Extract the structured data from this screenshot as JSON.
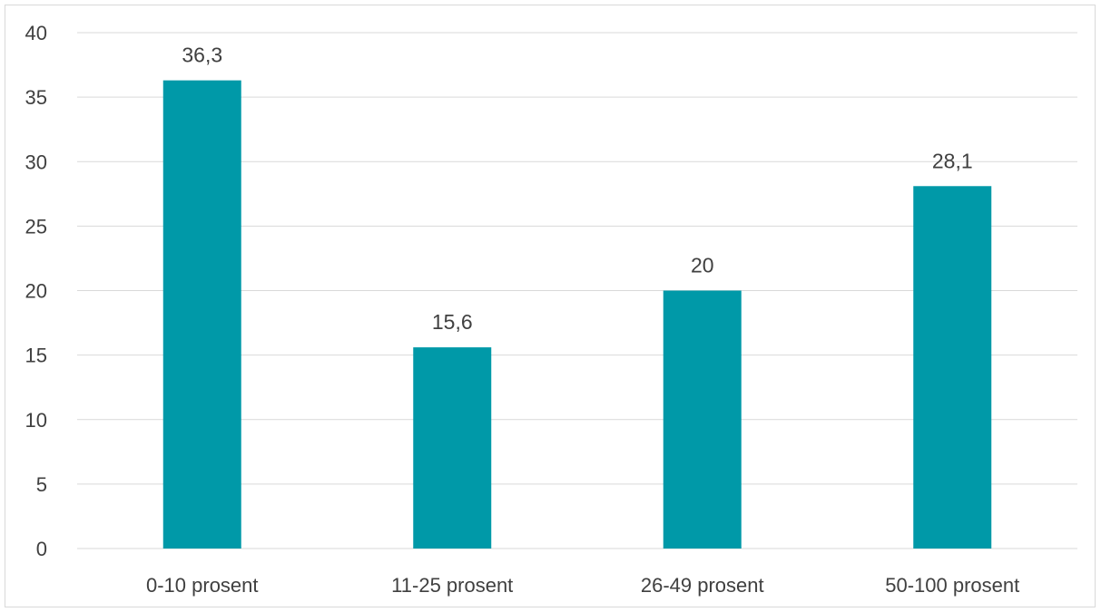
{
  "chart_data": {
    "type": "bar",
    "title": "",
    "xlabel": "",
    "ylabel": "",
    "categories": [
      "0-10 prosent",
      "11-25 prosent",
      "26-49 prosent",
      "50-100 prosent"
    ],
    "values": [
      36.3,
      15.6,
      20,
      28.1
    ],
    "data_labels": [
      "36,3",
      "15,6",
      "20",
      "28,1"
    ],
    "ylim": [
      0,
      40
    ],
    "yticks": [
      0,
      5,
      10,
      15,
      20,
      25,
      30,
      35,
      40
    ],
    "grid": true,
    "legend": "none",
    "colors": {
      "bar": "#0099A8",
      "grid": "#d9d9d9",
      "text": "#404040"
    }
  }
}
